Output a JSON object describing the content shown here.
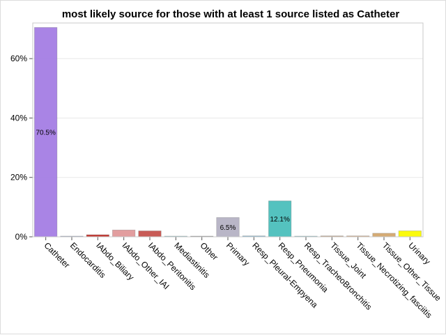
{
  "chart_data": {
    "type": "bar",
    "title": "most likely source for those with at least 1 source listed as Catheter",
    "xlabel": "",
    "ylabel": "",
    "ylim": [
      0,
      72
    ],
    "yticks": [
      0,
      20,
      40,
      60
    ],
    "ytick_labels": [
      "0%",
      "20%",
      "40%",
      "60%"
    ],
    "grid": true,
    "categories": [
      "Catheter",
      "Endocarditis",
      "IAbdo_Biliary",
      "IAbdo_Other_IAI",
      "IAbdo_Peritonitis",
      "Mediastinitis",
      "Other",
      "Primary",
      "Resp_Pleural-Empyena",
      "Resp_Pneumonia",
      "Resp_TracheoBronchitis",
      "Tissue_Joint",
      "Tissue_Necrotizing_fasciitis",
      "Tissue_Other_Tissue",
      "Urinary"
    ],
    "values": [
      70.5,
      0.2,
      0.7,
      2.3,
      2.0,
      0.2,
      0.2,
      6.5,
      0.3,
      12.1,
      0.2,
      0.3,
      0.3,
      1.2,
      2.0
    ],
    "data_labels": [
      "70.5%",
      "",
      "",
      "",
      "",
      "",
      "",
      "6.5%",
      "",
      "12.1%",
      "",
      "",
      "",
      "",
      ""
    ],
    "colors": [
      "#a47de4",
      "#9aa8c8",
      "#c0302a",
      "#e0999a",
      "#c5524d",
      "#8fc6cc",
      "#8a8a8a",
      "#b5b2c4",
      "#6fa8c8",
      "#4bbfbc",
      "#89c7d0",
      "#b69474",
      "#c99c72",
      "#d3a66e",
      "#fafa00"
    ]
  }
}
